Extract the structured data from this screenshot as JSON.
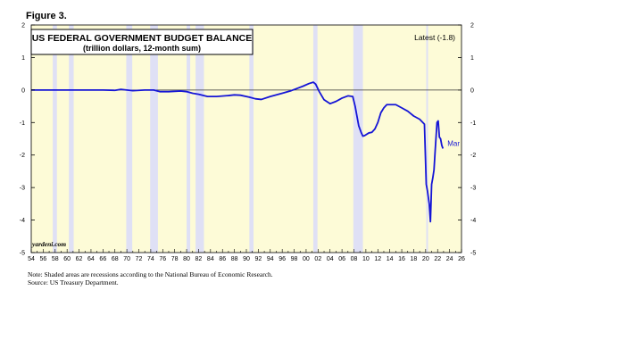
{
  "figure_label": "Figure 3.",
  "colors": {
    "plot_background": "#fdfbd7",
    "recession_band": "#dfe0f5",
    "series_line": "#1515d6",
    "zero_line": "#333333",
    "frame": "#000000"
  },
  "notes": {
    "line1": "Note: Shaded areas are recessions according to the National Bureau of Economic Research.",
    "line2": "Source: US Treasury Department."
  },
  "chart_data": {
    "type": "line",
    "title": "US FEDERAL GOVERNMENT BUDGET BALANCE",
    "subtitle": "(trillion dollars, 12-month sum)",
    "latest_label": "Latest (-1.8)",
    "end_label": "Mar",
    "watermark": "yardeni.com",
    "xlim": [
      1954,
      2026
    ],
    "ylim": [
      -5,
      2
    ],
    "x_ticks": [
      "54",
      "56",
      "58",
      "60",
      "62",
      "64",
      "66",
      "68",
      "70",
      "72",
      "74",
      "76",
      "78",
      "80",
      "82",
      "84",
      "86",
      "88",
      "90",
      "92",
      "94",
      "96",
      "98",
      "00",
      "02",
      "04",
      "06",
      "08",
      "10",
      "12",
      "14",
      "16",
      "18",
      "20",
      "22",
      "24",
      "26"
    ],
    "y_ticks_left": [
      "2",
      "1",
      "0",
      "-1",
      "-2",
      "-3",
      "-4",
      "-5"
    ],
    "y_ticks_right": [
      "2",
      "1",
      "0",
      "-1",
      "-2",
      "-3",
      "-4",
      "-5"
    ],
    "recessions": [
      [
        1957.6,
        1958.3
      ],
      [
        1960.3,
        1961.1
      ],
      [
        1969.9,
        1970.9
      ],
      [
        1973.9,
        1975.2
      ],
      [
        1980.0,
        1980.6
      ],
      [
        1981.5,
        1982.9
      ],
      [
        1990.5,
        1991.2
      ],
      [
        2001.2,
        2001.9
      ],
      [
        2007.9,
        2009.5
      ],
      [
        2020.1,
        2020.4
      ]
    ],
    "grid": false,
    "legend": "none",
    "series": [
      {
        "x": [
          1954,
          1957,
          1960,
          1963,
          1966,
          1968,
          1969,
          1971,
          1973,
          1974.5,
          1975.5,
          1977,
          1979,
          1980,
          1981,
          1982,
          1983.5,
          1985,
          1987,
          1988,
          1989,
          1990.5,
          1991.5,
          1992.5,
          1994,
          1996,
          1997.5,
          1998.5,
          1999.5,
          2000.5,
          2001.2,
          2001.6,
          2002.2,
          2003,
          2004,
          2005,
          2006,
          2007,
          2007.8,
          2008.2,
          2008.5,
          2008.8,
          2009.2,
          2009.5,
          2009.8,
          2010.5,
          2011,
          2011.5,
          2012,
          2012.5,
          2013,
          2013.5,
          2014,
          2015,
          2016,
          2017,
          2018,
          2019,
          2019.8,
          2020.1,
          2020.3,
          2020.6,
          2020.8,
          2021,
          2021.2,
          2021.4,
          2021.6,
          2021.9,
          2022.1,
          2022.3,
          2022.5,
          2022.7,
          2022.9
        ],
        "y": [
          0,
          0,
          0,
          0,
          0,
          -0.01,
          0.02,
          -0.02,
          0,
          0,
          -0.05,
          -0.05,
          -0.03,
          -0.05,
          -0.1,
          -0.13,
          -0.2,
          -0.2,
          -0.17,
          -0.15,
          -0.16,
          -0.22,
          -0.27,
          -0.29,
          -0.2,
          -0.1,
          -0.02,
          0.05,
          0.12,
          0.2,
          0.24,
          0.18,
          -0.05,
          -0.3,
          -0.42,
          -0.35,
          -0.25,
          -0.18,
          -0.2,
          -0.5,
          -0.8,
          -1.1,
          -1.3,
          -1.42,
          -1.4,
          -1.32,
          -1.3,
          -1.2,
          -1.0,
          -0.7,
          -0.55,
          -0.45,
          -0.45,
          -0.45,
          -0.55,
          -0.65,
          -0.8,
          -0.9,
          -1.05,
          -2.9,
          -3.1,
          -3.5,
          -4.05,
          -2.9,
          -2.7,
          -2.45,
          -1.85,
          -1.0,
          -0.95,
          -1.45,
          -1.5,
          -1.7,
          -1.8
        ]
      }
    ]
  }
}
